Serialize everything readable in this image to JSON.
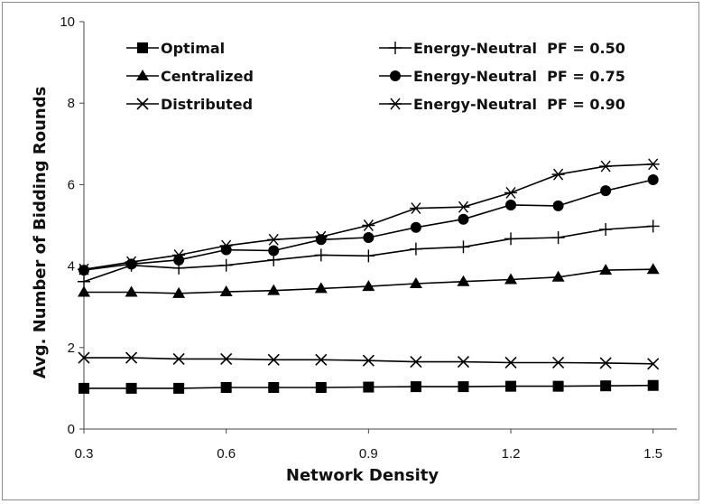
{
  "chart_data": {
    "type": "line",
    "xlabel": "Network Density",
    "ylabel": "Avg. Number of  Bidding Rounds",
    "xlim": [
      0.3,
      1.55
    ],
    "ylim": [
      0,
      10
    ],
    "x_ticks": [
      "0.3",
      "0.6",
      "0.9",
      "1.2",
      "1.5"
    ],
    "x_tick_values": [
      0.3,
      0.6,
      0.9,
      1.2,
      1.5
    ],
    "y_ticks": [
      "0",
      "2",
      "4",
      "6",
      "8",
      "10"
    ],
    "y_tick_values": [
      0,
      2,
      4,
      6,
      8,
      10
    ],
    "grid": false,
    "legend_position": "top",
    "x": [
      0.3,
      0.4,
      0.5,
      0.6,
      0.7,
      0.8,
      0.9,
      1.0,
      1.1,
      1.2,
      1.3,
      1.4,
      1.5
    ],
    "series": [
      {
        "name": "Optimal",
        "marker": "square",
        "values": [
          1.0,
          1.0,
          1.0,
          1.02,
          1.02,
          1.02,
          1.03,
          1.04,
          1.04,
          1.05,
          1.05,
          1.06,
          1.07
        ]
      },
      {
        "name": "Centralized",
        "marker": "triangle",
        "values": [
          3.36,
          3.36,
          3.33,
          3.37,
          3.4,
          3.45,
          3.5,
          3.57,
          3.62,
          3.67,
          3.73,
          3.9,
          3.92
        ]
      },
      {
        "name": "Distributed",
        "marker": "x",
        "values": [
          1.75,
          1.75,
          1.72,
          1.72,
          1.7,
          1.7,
          1.68,
          1.65,
          1.65,
          1.63,
          1.63,
          1.62,
          1.6
        ]
      },
      {
        "name": "Energy-Neutral  PF = 0.50",
        "marker": "plus",
        "values": [
          3.62,
          4.02,
          3.95,
          4.02,
          4.15,
          4.27,
          4.25,
          4.42,
          4.47,
          4.67,
          4.7,
          4.9,
          4.98
        ]
      },
      {
        "name": "Energy-Neutral  PF = 0.75",
        "marker": "circle",
        "values": [
          3.9,
          4.05,
          4.15,
          4.4,
          4.38,
          4.65,
          4.7,
          4.95,
          5.15,
          5.5,
          5.48,
          5.85,
          6.12
        ]
      },
      {
        "name": "Energy-Neutral  PF = 0.90",
        "marker": "star",
        "values": [
          3.92,
          4.1,
          4.27,
          4.5,
          4.65,
          4.72,
          5.0,
          5.42,
          5.45,
          5.8,
          6.25,
          6.45,
          6.5
        ]
      }
    ]
  }
}
